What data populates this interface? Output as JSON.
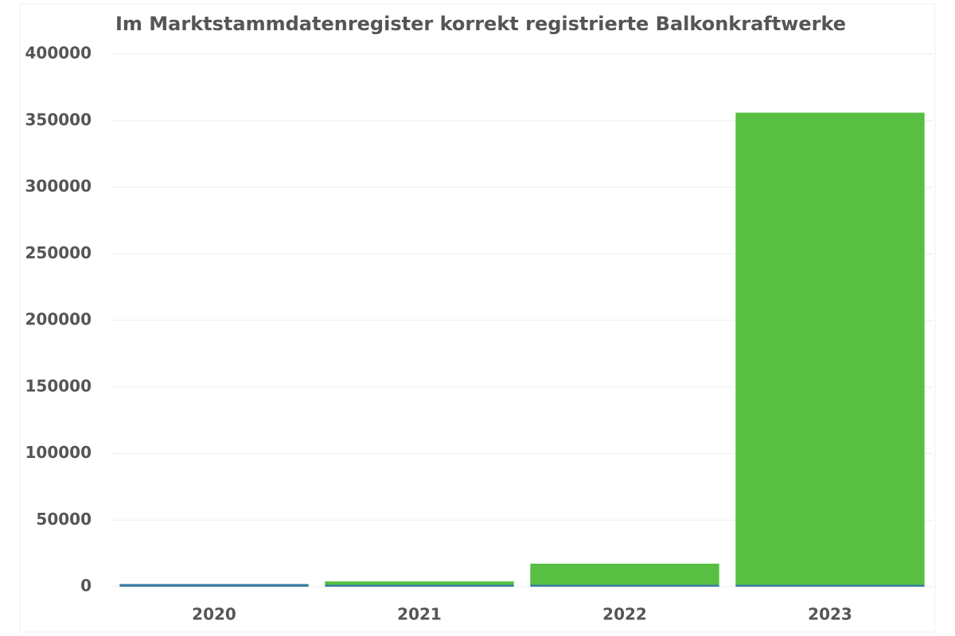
{
  "chart_data": {
    "type": "stacked_bar",
    "title": "Im Marktstammdatenregister korrekt registrierte Balkonkraftwerke",
    "categories": [
      "2020",
      "2021",
      "2022",
      "2023"
    ],
    "series": [
      {
        "color": "#3a7fa0",
        "values": [
          2000,
          1500,
          1500,
          1500
        ]
      },
      {
        "color": "#58bf43",
        "values": [
          0,
          2500,
          15800,
          354500
        ]
      }
    ],
    "ylim": [
      0,
      400000
    ],
    "yticks": [
      0,
      50000,
      100000,
      150000,
      200000,
      250000,
      300000,
      350000,
      400000
    ],
    "grid": true
  }
}
